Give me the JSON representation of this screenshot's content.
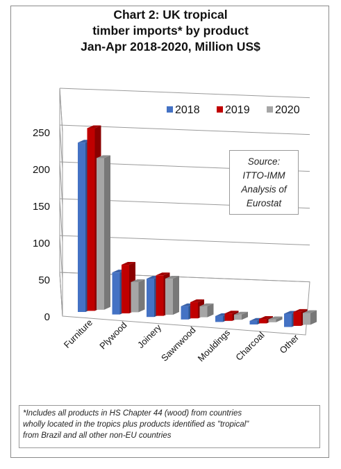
{
  "title_lines": [
    "Chart 2: UK tropical",
    "timber imports* by product",
    "Jan-Apr 2018-2020, Million US$"
  ],
  "source_lines": [
    "Source:",
    "ITTO-IMM",
    "Analysis of",
    "Eurostat"
  ],
  "footnote_lines": [
    "*Includes all products in HS Chapter 44 (wood) from countries",
    "wholly located in the tropics plus products identified as \"tropical\"",
    "from Brazil and all other non-EU countries"
  ],
  "colors": {
    "2018": "#4472C4",
    "2019": "#C00000",
    "2020": "#A6A6A6"
  },
  "chart_data": {
    "type": "bar",
    "style": "3d-clustered-column",
    "categories": [
      "Furniture",
      "Plywood",
      "Joinery",
      "Sawnwood",
      "Mouldings",
      "Charcoal",
      "Other"
    ],
    "series": [
      {
        "name": "2018",
        "values": [
          230,
          57,
          52,
          18,
          8,
          5,
          18
        ]
      },
      {
        "name": "2019",
        "values": [
          248,
          66,
          55,
          22,
          10,
          6,
          19
        ]
      },
      {
        "name": "2020",
        "values": [
          206,
          41,
          49,
          15,
          7,
          4,
          16
        ]
      }
    ],
    "yticks": [
      0,
      50,
      100,
      150,
      200,
      250
    ],
    "ylim": [
      0,
      250
    ],
    "legend": "top-right",
    "grid": true
  }
}
